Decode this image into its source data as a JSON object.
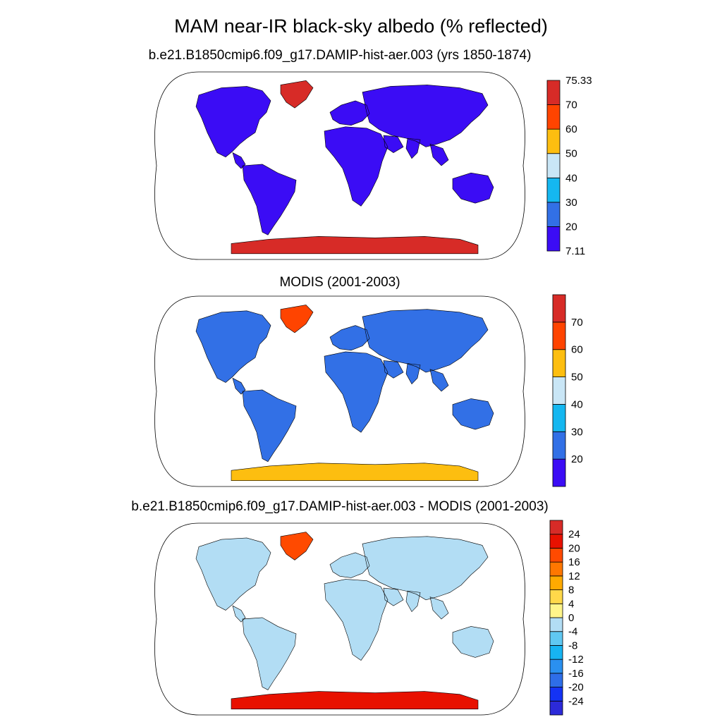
{
  "title": "MAM near-IR black-sky albedo (% reflected)",
  "panels": [
    {
      "title": "b.e21.B1850cmip6.f09_g17.DAMIP-hist-aer.003 (yrs 1850-1874)",
      "colorbar": {
        "colors": [
          "#3b0cf5",
          "#3270e6",
          "#15b7f0",
          "#c9e6f6",
          "#fdbe10",
          "#ff4400",
          "#d72b27"
        ],
        "labels": [
          "7.11",
          "20",
          "30",
          "40",
          "50",
          "60",
          "70",
          "75.33"
        ],
        "min_label": "7.11",
        "max_label": "75.33"
      }
    },
    {
      "title": "MODIS (2001-2003)",
      "colorbar": {
        "colors": [
          "#3b0cf5",
          "#3270e6",
          "#15b7f0",
          "#c9e6f6",
          "#fdbe10",
          "#ff4400",
          "#d72b27"
        ],
        "labels": [
          "20",
          "30",
          "40",
          "50",
          "60",
          "70"
        ]
      }
    },
    {
      "title": "b.e21.B1850cmip6.f09_g17.DAMIP-hist-aer.003 - MODIS (2001-2003)",
      "colorbar": {
        "colors": [
          "#2c2ad9",
          "#1433f5",
          "#2e6ee8",
          "#2a90f0",
          "#17b4f2",
          "#60c8f2",
          "#b2ddf4",
          "#fff58a",
          "#ffd84a",
          "#ffaa00",
          "#ff7700",
          "#ff4a00",
          "#e81100",
          "#d72b27"
        ],
        "labels": [
          "-24",
          "-20",
          "-16",
          "-12",
          "-8",
          "-4",
          "0",
          "4",
          "8",
          "12",
          "16",
          "20",
          "24"
        ]
      }
    }
  ]
}
